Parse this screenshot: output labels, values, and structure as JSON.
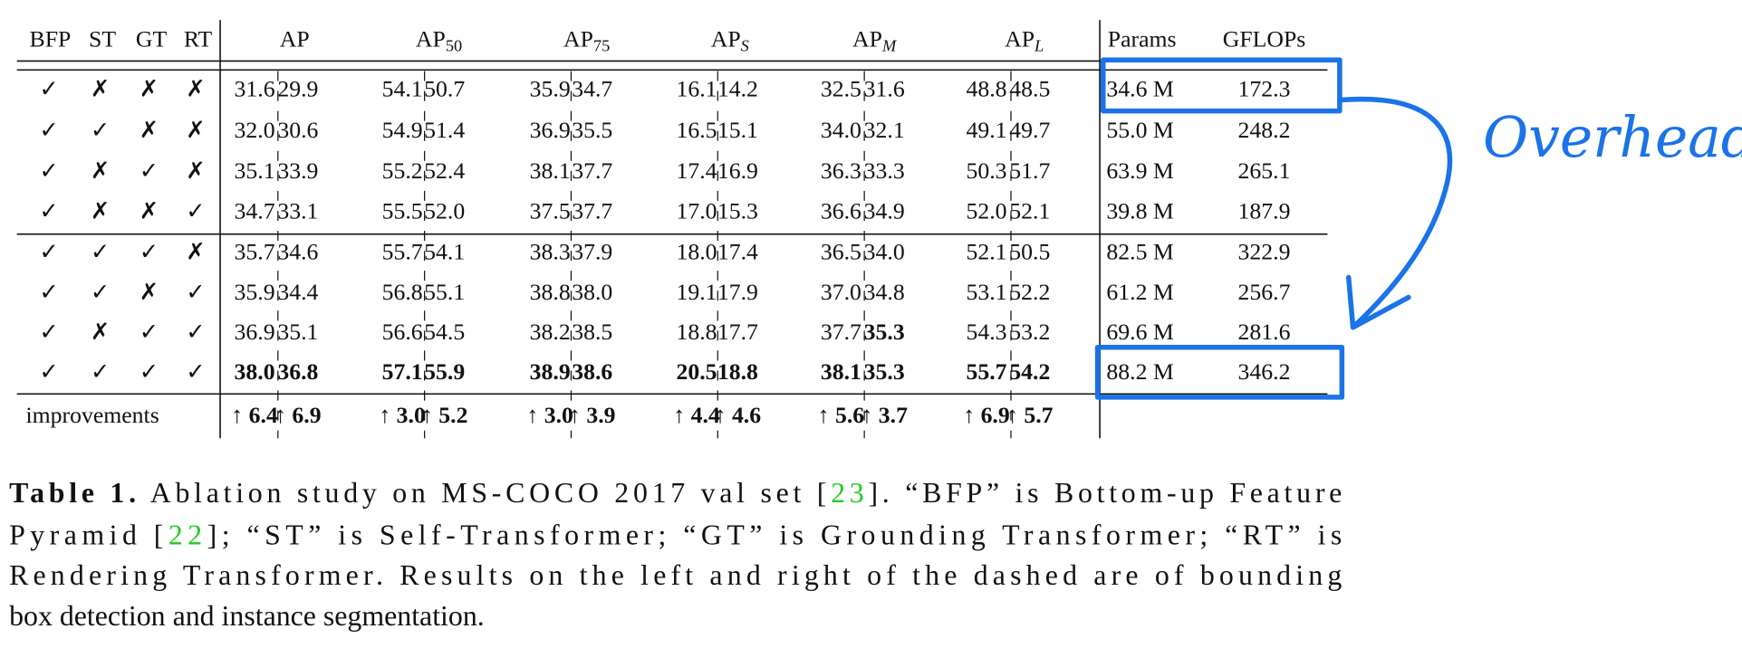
{
  "table": {
    "flag_headers": [
      "BFP",
      "ST",
      "GT",
      "RT"
    ],
    "metric_headers": [
      {
        "base": "AP"
      },
      {
        "base": "AP",
        "sub": "50"
      },
      {
        "base": "AP",
        "sub": "75"
      },
      {
        "base": "AP",
        "sub": "S"
      },
      {
        "base": "AP",
        "sub": "M"
      },
      {
        "base": "AP",
        "sub": "L"
      }
    ],
    "cost_headers": [
      "Params",
      "GFLOPs"
    ],
    "rows": [
      {
        "flags": [
          "✓",
          "✗",
          "✗",
          "✗"
        ],
        "values": [
          "31.6",
          "29.9",
          "54.1",
          "50.7",
          "35.9",
          "34.7",
          "16.1",
          "14.2",
          "32.5",
          "31.6",
          "48.8",
          "48.5"
        ],
        "params": "34.6 M",
        "gflops": "172.3",
        "bold": []
      },
      {
        "flags": [
          "✓",
          "✓",
          "✗",
          "✗"
        ],
        "values": [
          "32.0",
          "30.6",
          "54.9",
          "51.4",
          "36.9",
          "35.5",
          "16.5",
          "15.1",
          "34.0",
          "32.1",
          "49.1",
          "49.7"
        ],
        "params": "55.0 M",
        "gflops": "248.2",
        "bold": []
      },
      {
        "flags": [
          "✓",
          "✗",
          "✓",
          "✗"
        ],
        "values": [
          "35.1",
          "33.9",
          "55.2",
          "52.4",
          "38.1",
          "37.7",
          "17.4",
          "16.9",
          "36.3",
          "33.3",
          "50.3",
          "51.7"
        ],
        "params": "63.9 M",
        "gflops": "265.1",
        "bold": []
      },
      {
        "flags": [
          "✓",
          "✗",
          "✗",
          "✓"
        ],
        "values": [
          "34.7",
          "33.1",
          "55.5",
          "52.0",
          "37.5",
          "37.7",
          "17.0",
          "15.3",
          "36.6",
          "34.9",
          "52.0",
          "52.1"
        ],
        "params": "39.8 M",
        "gflops": "187.9",
        "bold": []
      },
      {
        "flags": [
          "✓",
          "✓",
          "✓",
          "✗"
        ],
        "values": [
          "35.7",
          "34.6",
          "55.7",
          "54.1",
          "38.3",
          "37.9",
          "18.0",
          "17.4",
          "36.5",
          "34.0",
          "52.1",
          "50.5"
        ],
        "params": "82.5 M",
        "gflops": "322.9",
        "bold": []
      },
      {
        "flags": [
          "✓",
          "✓",
          "✗",
          "✓"
        ],
        "values": [
          "35.9",
          "34.4",
          "56.8",
          "55.1",
          "38.8",
          "38.0",
          "19.1",
          "17.9",
          "37.0",
          "34.8",
          "53.1",
          "52.2"
        ],
        "params": "61.2 M",
        "gflops": "256.7",
        "bold": []
      },
      {
        "flags": [
          "✓",
          "✗",
          "✓",
          "✓"
        ],
        "values": [
          "36.9",
          "35.1",
          "56.6",
          "54.5",
          "38.2",
          "38.5",
          "18.8",
          "17.7",
          "37.7",
          "35.3",
          "54.3",
          "53.2"
        ],
        "params": "69.6 M",
        "gflops": "281.6",
        "bold": [
          9
        ]
      },
      {
        "flags": [
          "✓",
          "✓",
          "✓",
          "✓"
        ],
        "values": [
          "38.0",
          "36.8",
          "57.1",
          "55.9",
          "38.9",
          "38.6",
          "20.5",
          "18.8",
          "38.1",
          "35.3",
          "55.7",
          "54.2"
        ],
        "params": "88.2 M",
        "gflops": "346.2",
        "bold": [
          0,
          1,
          2,
          3,
          4,
          5,
          6,
          7,
          8,
          9,
          10,
          11
        ]
      }
    ],
    "improvements": {
      "label": "improvements",
      "values": [
        "↑ 6.4",
        "↑ 6.9",
        "↑ 3.0",
        "↑ 5.2",
        "↑ 3.0",
        "↑ 3.9",
        "↑ 4.4",
        "↑ 4.6",
        "↑ 5.6",
        "↑ 3.7",
        "↑ 6.9",
        "↑ 5.7"
      ]
    }
  },
  "annotation": "Overhead !",
  "caption": {
    "lines": [
      [
        {
          "text": "Table 1.",
          "style": "bold"
        },
        {
          "text": " Ablation study on MS-COCO 2017 val set ["
        },
        {
          "text": "23",
          "style": "ref"
        },
        {
          "text": "]. “BFP” is Bottom-up Feature"
        }
      ],
      [
        {
          "text": "Pyramid ["
        },
        {
          "text": "22",
          "style": "ref"
        },
        {
          "text": "]; “ST” is Self-Transformer; “GT” is Grounding Transformer; “RT” is"
        }
      ],
      [
        {
          "text": "Rendering Transformer. Results on the left and right of the dashed are of bounding"
        }
      ],
      [
        {
          "text": "box detection and instance segmentation."
        }
      ]
    ]
  }
}
